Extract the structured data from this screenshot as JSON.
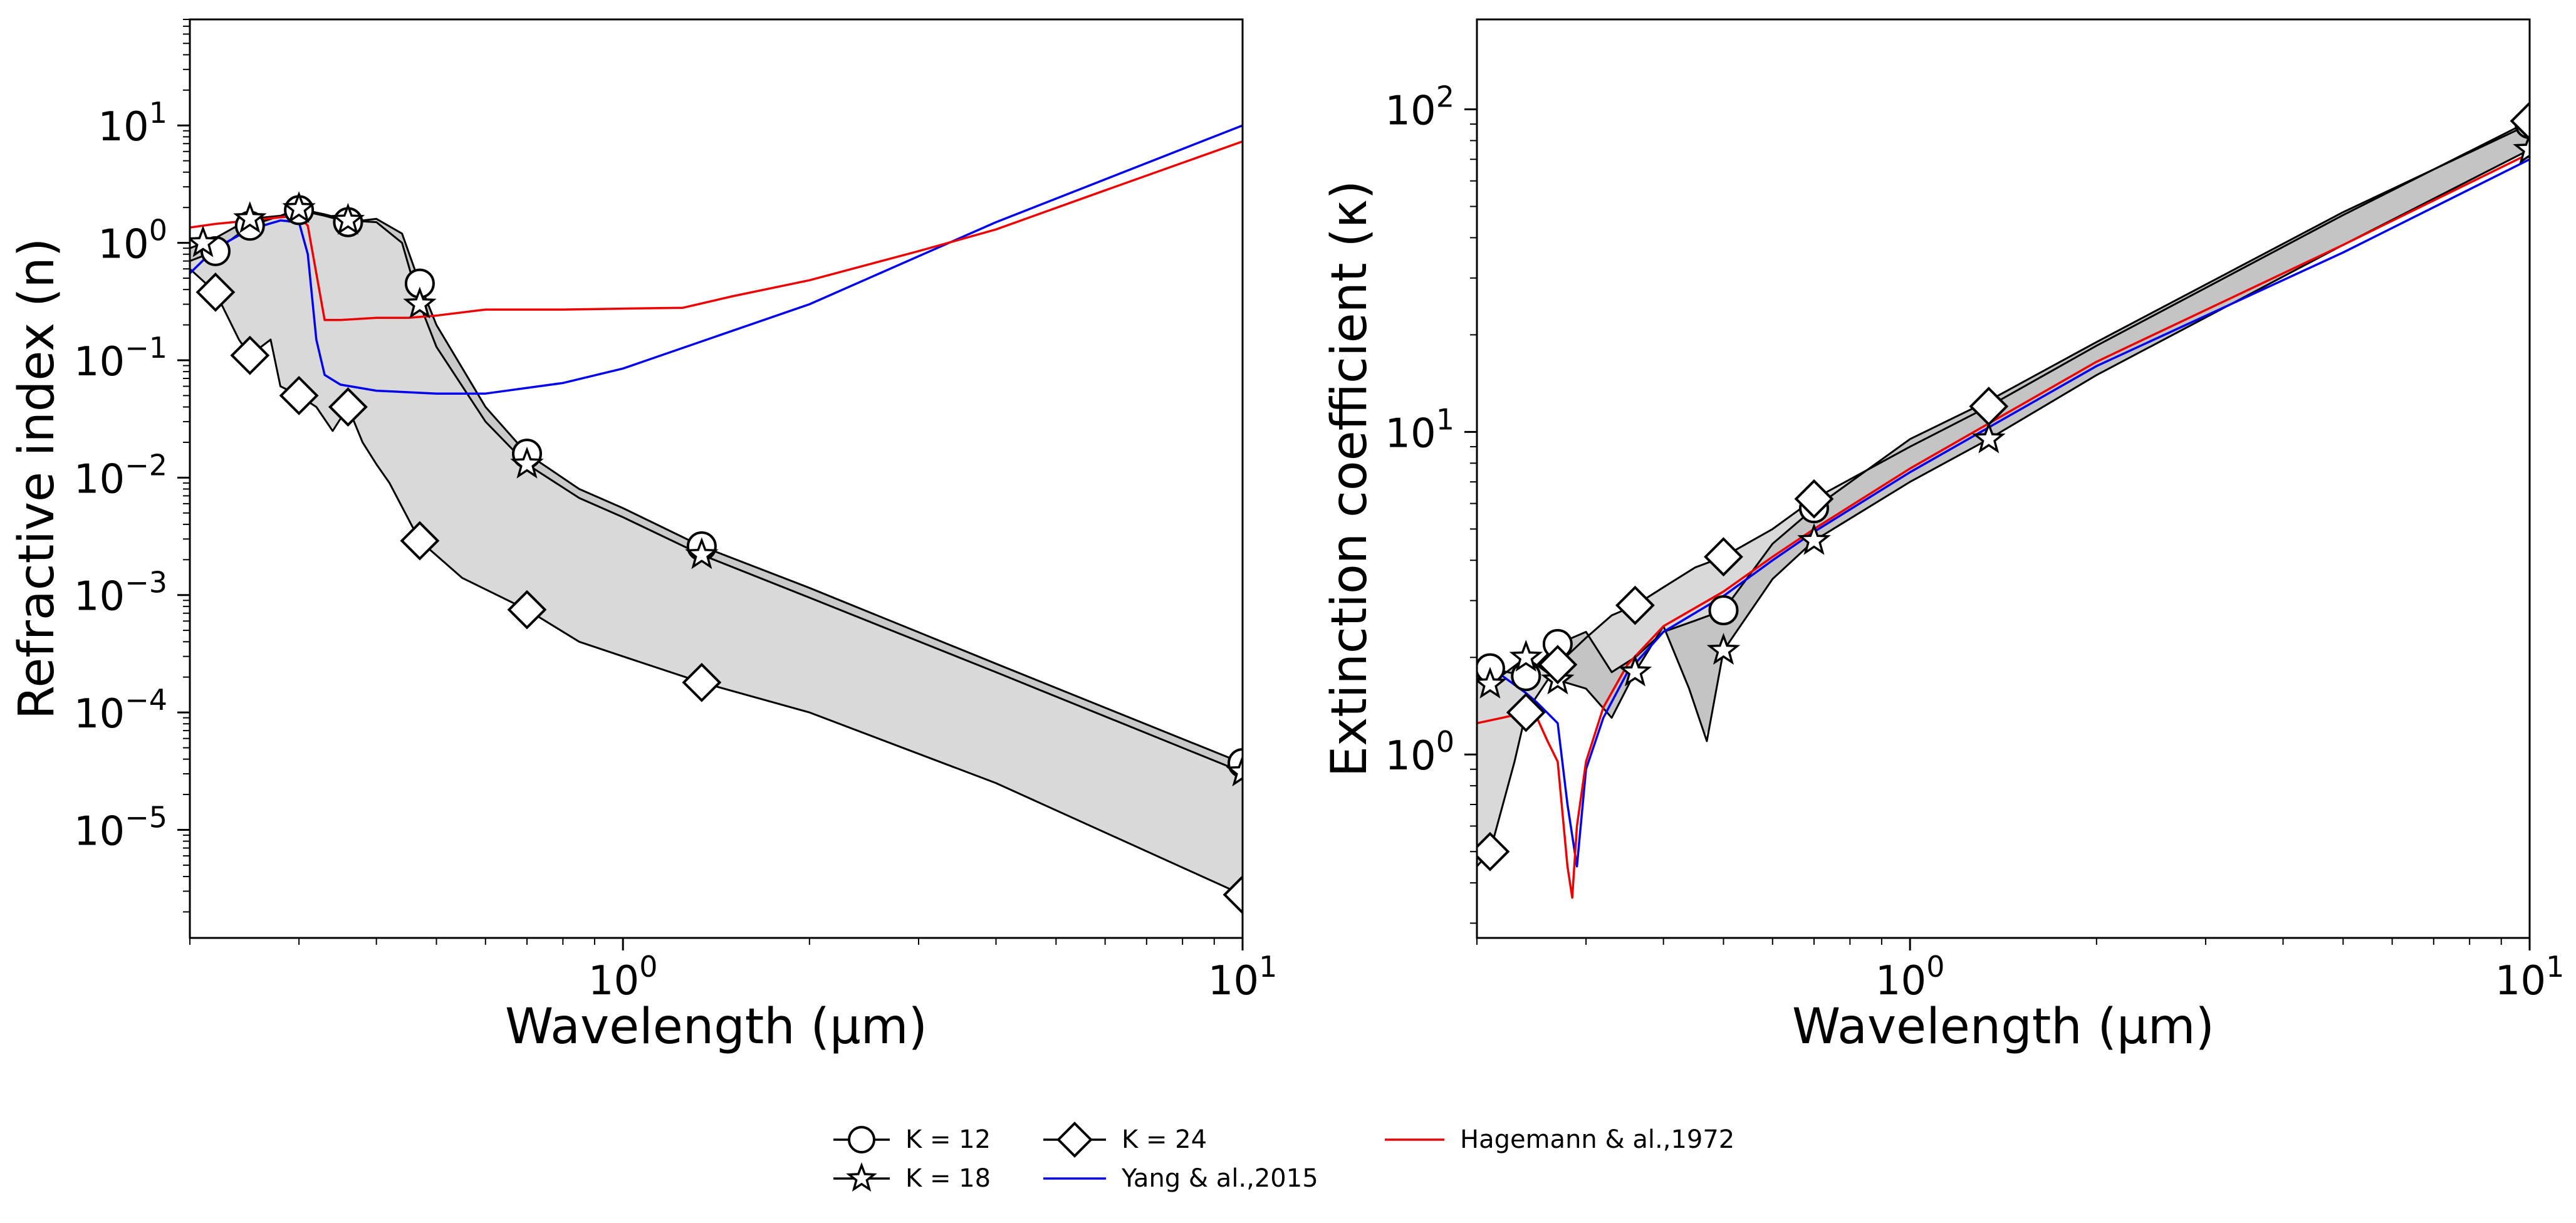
{
  "chart_data": [
    {
      "type": "line",
      "log_x": true,
      "log_y": true,
      "xlabel": "Wavelength (µm)",
      "ylabel": "Refractive index (n)",
      "xlim": [
        0.2,
        10
      ],
      "ylim": [
        1.2e-06,
        80
      ],
      "xticks": [
        {
          "base": "10",
          "exp": "0",
          "value": 1
        },
        {
          "base": "10",
          "exp": "1",
          "value": 10
        }
      ],
      "yticks": [
        {
          "base": "10",
          "exp": "−5",
          "value": 1e-05
        },
        {
          "base": "10",
          "exp": "−4",
          "value": 0.0001
        },
        {
          "base": "10",
          "exp": "−3",
          "value": 0.001
        },
        {
          "base": "10",
          "exp": "−2",
          "value": 0.01
        },
        {
          "base": "10",
          "exp": "−1",
          "value": 0.1
        },
        {
          "base": "10",
          "exp": "0",
          "value": 1
        },
        {
          "base": "10",
          "exp": "1",
          "value": 10
        }
      ],
      "series": [
        {
          "name": "K = 12",
          "marker": "circle",
          "color": "#000000",
          "x": [
            0.2,
            0.22,
            0.25,
            0.28,
            0.3,
            0.33,
            0.36,
            0.4,
            0.44,
            0.47,
            0.5,
            0.6,
            0.7,
            0.85,
            1.0,
            1.34,
            2.0,
            4.0,
            10.0
          ],
          "y": [
            0.7,
            0.85,
            1.4,
            1.7,
            1.9,
            1.7,
            1.5,
            1.6,
            1.2,
            0.45,
            0.2,
            0.04,
            0.016,
            0.008,
            0.0055,
            0.0026,
            0.00115,
            0.00026,
            3.7e-05
          ],
          "markers_x": [
            0.22,
            0.25,
            0.3,
            0.36,
            0.47,
            0.7,
            1.34,
            10.0
          ]
        },
        {
          "name": "K = 18",
          "marker": "star",
          "color": "#000000",
          "x": [
            0.2,
            0.22,
            0.25,
            0.28,
            0.3,
            0.33,
            0.36,
            0.4,
            0.44,
            0.47,
            0.5,
            0.6,
            0.7,
            0.85,
            1.0,
            1.34,
            2.0,
            4.0,
            10.0
          ],
          "y": [
            0.9,
            1.1,
            1.6,
            1.7,
            1.95,
            1.75,
            1.55,
            1.5,
            1.0,
            0.3,
            0.13,
            0.03,
            0.013,
            0.0067,
            0.0046,
            0.0022,
            0.00095,
            0.00022,
            3.1e-05
          ],
          "markers_x": [
            0.21,
            0.25,
            0.3,
            0.36,
            0.47,
            0.7,
            1.34,
            10.0
          ]
        },
        {
          "name": "K = 24",
          "marker": "diamond",
          "color": "#000000",
          "x": [
            0.2,
            0.22,
            0.24,
            0.25,
            0.27,
            0.28,
            0.3,
            0.32,
            0.34,
            0.36,
            0.38,
            0.4,
            0.42,
            0.47,
            0.55,
            0.7,
            0.85,
            1.0,
            1.34,
            2.0,
            4.0,
            10.0
          ],
          "y": [
            0.6,
            0.38,
            0.15,
            0.11,
            0.15,
            0.06,
            0.05,
            0.04,
            0.025,
            0.04,
            0.02,
            0.013,
            0.009,
            0.0029,
            0.0014,
            0.00075,
            0.0004,
            0.0003,
            0.00018,
            0.0001,
            2.5e-05,
            2.8e-06
          ],
          "markers_x": [
            0.22,
            0.25,
            0.3,
            0.36,
            0.47,
            0.7,
            1.34,
            10.0
          ]
        },
        {
          "name": "Yang & al.,2015",
          "marker": "none",
          "color": "#0000ee",
          "x": [
            0.2,
            0.22,
            0.25,
            0.28,
            0.3,
            0.31,
            0.32,
            0.33,
            0.35,
            0.4,
            0.5,
            0.6,
            0.8,
            1.0,
            2.0,
            4.0,
            10.0
          ],
          "y": [
            0.55,
            0.9,
            1.3,
            1.55,
            1.5,
            0.8,
            0.15,
            0.075,
            0.062,
            0.055,
            0.052,
            0.052,
            0.064,
            0.085,
            0.3,
            1.5,
            10.0
          ]
        },
        {
          "name": "Hagemann & al.,1972",
          "marker": "none",
          "color": "#ee0000",
          "x": [
            0.2,
            0.22,
            0.25,
            0.28,
            0.3,
            0.31,
            0.33,
            0.35,
            0.4,
            0.45,
            0.5,
            0.6,
            0.8,
            1.0,
            1.25,
            1.5,
            2.0,
            3.0,
            4.0,
            6.0,
            10.0
          ],
          "y": [
            1.35,
            1.45,
            1.55,
            1.65,
            1.7,
            1.4,
            0.22,
            0.22,
            0.23,
            0.23,
            0.24,
            0.27,
            0.27,
            0.275,
            0.28,
            0.35,
            0.48,
            0.85,
            1.3,
            2.8,
            7.3
          ]
        }
      ]
    },
    {
      "type": "line",
      "log_x": true,
      "log_y": true,
      "xlabel": "Wavelength (µm)",
      "ylabel": "Extinction coefficient (κ)",
      "xlim": [
        0.2,
        10
      ],
      "ylim": [
        0.27,
        190
      ],
      "xticks": [
        {
          "base": "10",
          "exp": "0",
          "value": 1
        },
        {
          "base": "10",
          "exp": "1",
          "value": 10
        }
      ],
      "yticks": [
        {
          "base": "10",
          "exp": "0",
          "value": 1
        },
        {
          "base": "10",
          "exp": "1",
          "value": 10
        },
        {
          "base": "10",
          "exp": "2",
          "value": 100
        }
      ],
      "series": [
        {
          "name": "K = 12",
          "marker": "circle",
          "color": "#000000",
          "x": [
            0.2,
            0.21,
            0.24,
            0.27,
            0.3,
            0.33,
            0.36,
            0.4,
            0.45,
            0.5,
            0.6,
            0.7,
            1.0,
            1.34,
            2.0,
            5.0,
            10.0
          ],
          "y": [
            1.7,
            1.85,
            1.75,
            2.2,
            2.4,
            1.8,
            2.0,
            2.4,
            2.6,
            2.8,
            4.5,
            5.8,
            9.5,
            12.5,
            19,
            48,
            90
          ],
          "markers_x": [
            0.21,
            0.24,
            0.27,
            0.5,
            0.7,
            10.0
          ]
        },
        {
          "name": "K = 18",
          "marker": "star",
          "color": "#000000",
          "x": [
            0.2,
            0.21,
            0.24,
            0.27,
            0.3,
            0.33,
            0.36,
            0.4,
            0.44,
            0.47,
            0.5,
            0.6,
            0.7,
            1.0,
            1.34,
            2.0,
            5.0,
            10.0
          ],
          "y": [
            1.8,
            1.65,
            2.0,
            1.7,
            1.6,
            1.3,
            1.8,
            2.5,
            1.6,
            1.1,
            2.1,
            3.5,
            4.6,
            7.0,
            9.5,
            15,
            38,
            75
          ],
          "markers_x": [
            0.21,
            0.24,
            0.27,
            0.36,
            0.5,
            0.7,
            1.34,
            10.0
          ]
        },
        {
          "name": "K = 24",
          "marker": "diamond",
          "color": "#000000",
          "x": [
            0.2,
            0.21,
            0.23,
            0.24,
            0.26,
            0.27,
            0.3,
            0.33,
            0.36,
            0.4,
            0.45,
            0.5,
            0.6,
            0.7,
            1.0,
            1.34,
            2.0,
            5.0,
            10.0
          ],
          "y": [
            0.45,
            0.5,
            0.95,
            1.35,
            1.7,
            1.9,
            2.3,
            2.7,
            2.9,
            3.3,
            3.8,
            4.1,
            5.0,
            6.2,
            9.0,
            12.0,
            18.5,
            47,
            92
          ],
          "markers_x": [
            0.21,
            0.24,
            0.27,
            0.36,
            0.5,
            0.7,
            1.34,
            10.0
          ]
        },
        {
          "name": "Yang & al.,2015",
          "marker": "none",
          "color": "#0000ee",
          "x": [
            0.2,
            0.22,
            0.24,
            0.25,
            0.27,
            0.28,
            0.29,
            0.3,
            0.32,
            0.35,
            0.4,
            0.5,
            0.6,
            0.7,
            1.0,
            2.0,
            5.0,
            10.0
          ],
          "y": [
            1.85,
            1.75,
            1.55,
            1.45,
            1.25,
            0.7,
            0.45,
            0.9,
            1.3,
            1.8,
            2.4,
            3.1,
            4.0,
            4.9,
            7.5,
            16,
            36,
            70
          ],
          "markers_x": []
        },
        {
          "name": "Hagemann & al.,1972",
          "marker": "none",
          "color": "#ee0000",
          "x": [
            0.2,
            0.22,
            0.24,
            0.25,
            0.26,
            0.27,
            0.28,
            0.285,
            0.29,
            0.3,
            0.32,
            0.35,
            0.4,
            0.5,
            0.6,
            0.7,
            1.0,
            2.0,
            5.0,
            10.0
          ],
          "y": [
            1.25,
            1.3,
            1.35,
            1.3,
            1.1,
            0.95,
            0.45,
            0.36,
            0.6,
            0.95,
            1.4,
            1.9,
            2.5,
            3.2,
            4.1,
            5.0,
            7.7,
            16.5,
            38,
            73
          ],
          "markers_x": []
        }
      ]
    }
  ],
  "legend": {
    "items": [
      {
        "label": "K = 12",
        "marker": "circle",
        "color": "#000000"
      },
      {
        "label": "K = 18",
        "marker": "star",
        "color": "#000000"
      },
      {
        "label": "K = 24",
        "marker": "diamond",
        "color": "#000000"
      },
      {
        "label": "Yang & al.,2015",
        "marker": "none",
        "color": "#0000ee"
      },
      {
        "label": "Hagemann & al.,1972",
        "marker": "none",
        "color": "#ee0000"
      }
    ]
  },
  "colors": {
    "envelope_light": "#d9d9d9",
    "envelope_dark": "#bebebe",
    "line": "#000000"
  }
}
